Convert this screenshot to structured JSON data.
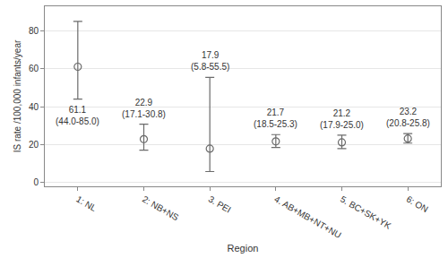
{
  "chart_data": {
    "type": "scatter",
    "x_label": "Region",
    "y_label": "IS rate /100,000 infants/year",
    "categories": [
      "1: NL",
      "2: NB+NS",
      "3. PEI",
      "4. AB+MB+NT+NU",
      "5. BC+SK+YK",
      "6: ON"
    ],
    "values": [
      61.1,
      22.9,
      17.9,
      21.7,
      21.2,
      23.2
    ],
    "lower": [
      44.0,
      17.1,
      5.8,
      18.5,
      17.9,
      20.8
    ],
    "upper": [
      85.0,
      30.8,
      55.5,
      25.3,
      25.0,
      25.8
    ],
    "value_labels": [
      "61.1\n(44.0-85.0)",
      "22.9\n(17.1-30.8)",
      "17.9\n(5.8-55.5)",
      "21.7\n(18.5-25.3)",
      "21.2\n(17.9-25.0)",
      "23.2\n(20.8-25.8)"
    ],
    "data_labels": true,
    "color": "#6b6b6b",
    "marker": "circle-open",
    "ylim": [
      -2,
      93
    ],
    "yticks": [
      0,
      20,
      40,
      60,
      80
    ],
    "grid": true
  }
}
